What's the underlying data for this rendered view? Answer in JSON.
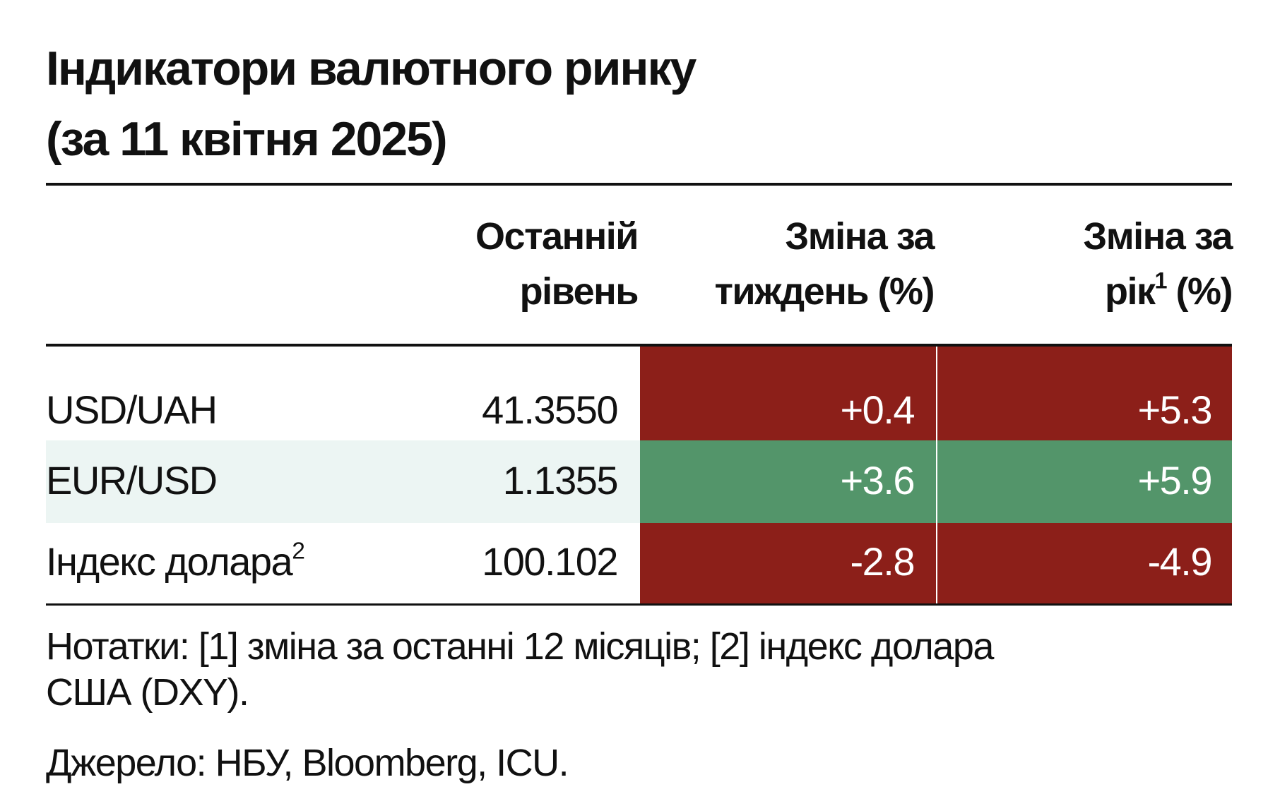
{
  "title": [
    "Індикатори валютного ринку",
    "(за 11 квітня 2025)"
  ],
  "header": [
    {
      "lines": [
        "Останній",
        "рівень"
      ]
    },
    {
      "lines": [
        "Зміна за",
        "тиждень (%)"
      ]
    },
    {
      "lines": [
        "Зміна за"
      ],
      "last": "рік",
      "sup": "1",
      "after": "(%)"
    }
  ],
  "rows": [
    {
      "label": "USD/UAH",
      "level": "41.3550",
      "week": "+0.4",
      "year": "+5.3"
    },
    {
      "label": "EUR/USD",
      "level": "1.1355",
      "week": "+3.6",
      "year": "+5.9"
    },
    {
      "label": "Індекс долара",
      "sup": "2",
      "level": "100.102",
      "week": "-2.8",
      "year": "-4.9"
    }
  ],
  "notes": [
    "Нотатки: [1] зміна за останні 12 місяців; [2] індекс долара",
    "США (DXY)."
  ],
  "source": "Джерело: НБУ, Bloomberg, ICU."
}
